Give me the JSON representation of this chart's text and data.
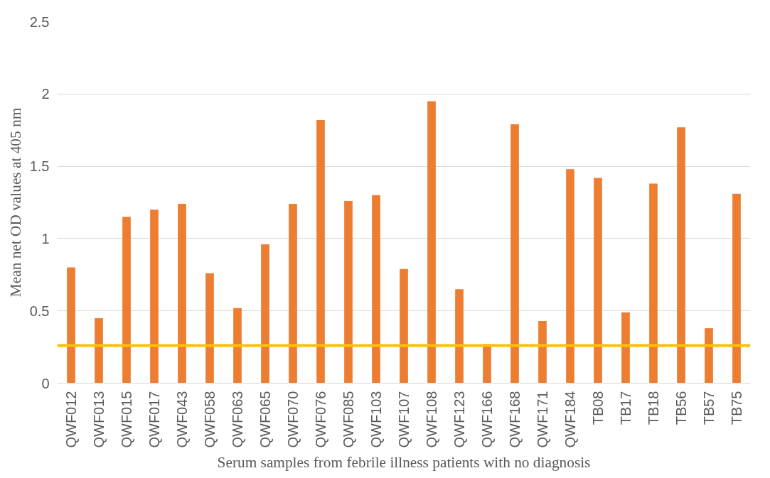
{
  "chart_data": {
    "type": "bar",
    "xlabel": "Serum samples from febrile illness patients with no diagnosis",
    "ylabel": "Mean net OD values at 405 nm",
    "categories": [
      "QWF012",
      "QWF013",
      "QWF015",
      "QWF017",
      "QWF043",
      "QWF058",
      "QWF063",
      "QWF065",
      "QWF070",
      "QWF076",
      "QWF085",
      "QWF103",
      "QWF107",
      "QWF108",
      "QWF123",
      "QWF166",
      "QWF168",
      "QWF171",
      "QWF184",
      "TB08",
      "TB17",
      "TB18",
      "TB56",
      "TB57",
      "TB75"
    ],
    "values": [
      0.8,
      0.45,
      1.15,
      1.2,
      1.24,
      0.76,
      0.52,
      0.96,
      1.24,
      1.82,
      1.26,
      1.3,
      0.79,
      1.95,
      0.65,
      0.27,
      1.79,
      0.43,
      1.48,
      1.42,
      0.49,
      1.38,
      1.77,
      0.38,
      1.31
    ],
    "color": "#ed7d31",
    "ylim": [
      0,
      2.5
    ],
    "yticks": [
      0,
      0.5,
      1,
      1.5,
      2,
      2.5
    ],
    "grid": "y",
    "ref_lines": [
      {
        "axis": "y",
        "value": 0.26,
        "label": null,
        "color": "#ffc000"
      }
    ]
  }
}
